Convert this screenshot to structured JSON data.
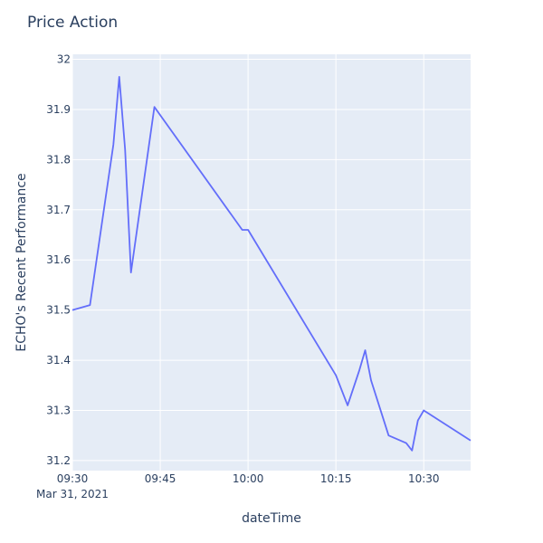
{
  "chart_data": {
    "type": "line",
    "title": "Price Action",
    "xlabel": "dateTime",
    "ylabel": "ECHO's Recent Performance",
    "x_ticks": [
      "09:30",
      "09:45",
      "10:00",
      "10:15",
      "10:30"
    ],
    "x_tick_sublabel": "Mar 31, 2021",
    "y_ticks": [
      "31.2",
      "31.3",
      "31.4",
      "31.5",
      "31.6",
      "31.7",
      "31.8",
      "31.9",
      "32"
    ],
    "xlim": [
      "09:30",
      "10:38"
    ],
    "ylim": [
      31.18,
      32.01
    ],
    "grid": true,
    "series": [
      {
        "x": [
          "09:30",
          "09:33",
          "09:37",
          "09:38",
          "09:39",
          "09:40",
          "09:44",
          "09:59",
          "10:00",
          "10:15",
          "10:17",
          "10:19",
          "10:20",
          "10:21",
          "10:24",
          "10:27",
          "10:28",
          "10:29",
          "10:30",
          "10:38"
        ],
        "y": [
          31.5,
          31.51,
          31.83,
          31.965,
          31.82,
          31.575,
          31.905,
          31.66,
          31.66,
          31.37,
          31.31,
          31.38,
          31.42,
          31.36,
          31.25,
          31.235,
          31.22,
          31.28,
          31.3,
          31.24
        ]
      }
    ],
    "colors": {
      "line": "#636efa",
      "plot_bg": "#e5ecf6",
      "grid": "#ffffff",
      "text": "#2a3f5f"
    }
  }
}
